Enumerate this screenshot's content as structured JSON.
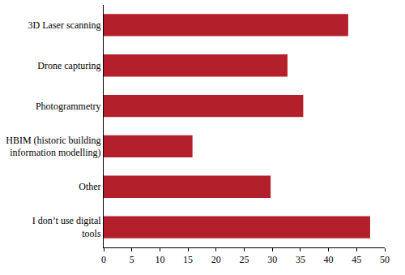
{
  "chart_data": {
    "type": "bar",
    "orientation": "horizontal",
    "categories": [
      "3D Laser scanning",
      "Drone capturing",
      "Photogrammetry",
      "HBIM (historic building information modelling)",
      "Other",
      "I don’t use digital tools"
    ],
    "values": [
      43.5,
      32.7,
      35.5,
      15.8,
      29.7,
      47.4
    ],
    "color": "#b3202b",
    "xlim": [
      0,
      50
    ],
    "xticks": [
      0,
      5,
      10,
      15,
      20,
      25,
      30,
      35,
      40,
      45,
      50
    ],
    "grid": false
  }
}
